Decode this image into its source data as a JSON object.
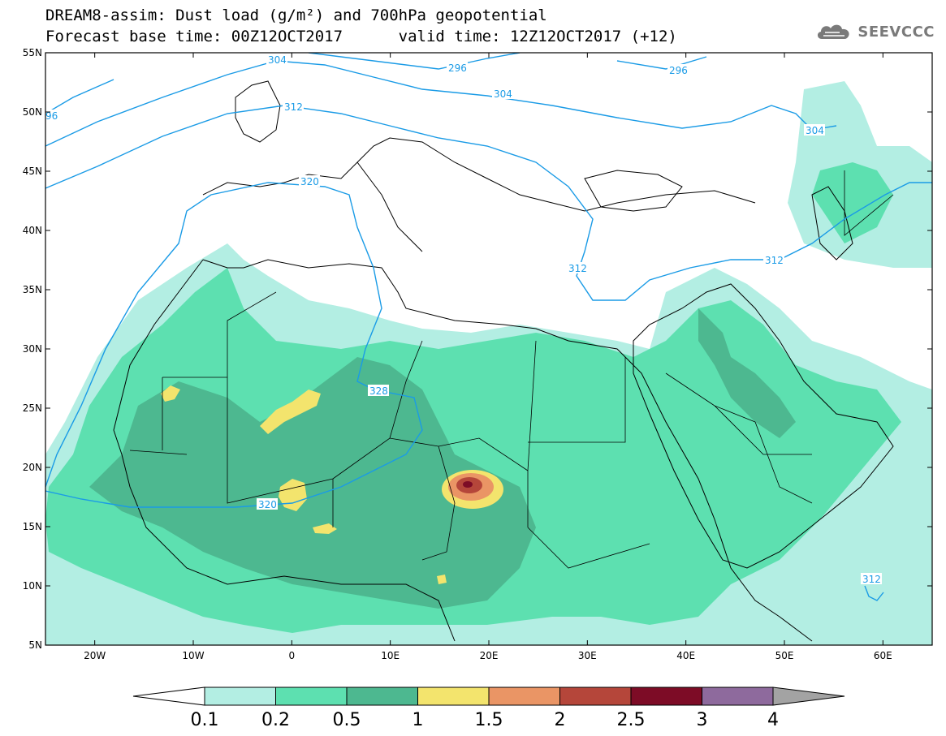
{
  "header": {
    "title_line1": "DREAM8-assim: Dust load (g/m²) and 700hPa geopotential",
    "title_line2": "Forecast base time: 00Z12OCT2017      valid time: 12Z12OCT2017 (+12)",
    "logo_text": "SEEVCCC"
  },
  "map": {
    "lon_range": [
      -25,
      65
    ],
    "lat_range": [
      5,
      55
    ],
    "lat_labels": [
      "55N",
      "50N",
      "45N",
      "40N",
      "35N",
      "30N",
      "25N",
      "20N",
      "15N",
      "10N",
      "5N"
    ],
    "lon_labels": [
      "20W",
      "10W",
      "0",
      "10E",
      "20E",
      "30E",
      "40E",
      "50E",
      "60E"
    ],
    "contour_color": "#1a9be6",
    "contour_labels": [
      "304",
      "296",
      "304",
      "296",
      "312",
      "304",
      "320",
      "312",
      "312",
      "328",
      "320",
      "312",
      "96"
    ]
  },
  "colorbar": {
    "levels": [
      "0.1",
      "0.2",
      "0.5",
      "1",
      "1.5",
      "2",
      "2.5",
      "3",
      "4"
    ],
    "colors": [
      "#ffffff",
      "#b3eee3",
      "#5de0b0",
      "#4db890",
      "#f3e46d",
      "#ea9565",
      "#b5463a",
      "#7d0c26",
      "#8e6a9d",
      "#a3a3a3"
    ]
  }
}
